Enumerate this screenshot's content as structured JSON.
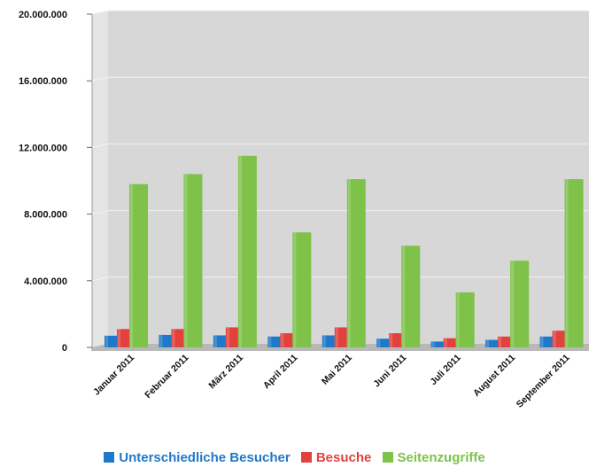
{
  "chart_data": {
    "type": "bar",
    "title": "",
    "xlabel": "",
    "ylabel": "",
    "ylim": [
      0,
      20000000
    ],
    "yticks": [
      "0",
      "4.000.000",
      "8.000.000",
      "12.000.000",
      "16.000.000",
      "20.000.000"
    ],
    "ytick_values": [
      0,
      4000000,
      8000000,
      12000000,
      16000000,
      20000000
    ],
    "grid": true,
    "legend_position": "bottom",
    "categories": [
      "Januar 2011",
      "Februar 2011",
      "März 2011",
      "April 2011",
      "Mai 2011",
      "Juni 2011",
      "Juli 2011",
      "August 2011",
      "September 2011"
    ],
    "series": [
      {
        "name": "Unterschiedliche Besucher",
        "color": "#1f78c8",
        "values": [
          700000,
          750000,
          720000,
          650000,
          720000,
          520000,
          350000,
          450000,
          650000
        ]
      },
      {
        "name": "Besuche",
        "color": "#e2413e",
        "values": [
          1100000,
          1100000,
          1200000,
          850000,
          1200000,
          850000,
          550000,
          650000,
          1000000
        ]
      },
      {
        "name": "Seitenzugriffe",
        "color": "#7fc24a",
        "values": [
          9800000,
          10400000,
          11500000,
          6900000,
          10100000,
          6100000,
          3300000,
          5200000,
          10100000
        ]
      }
    ]
  }
}
